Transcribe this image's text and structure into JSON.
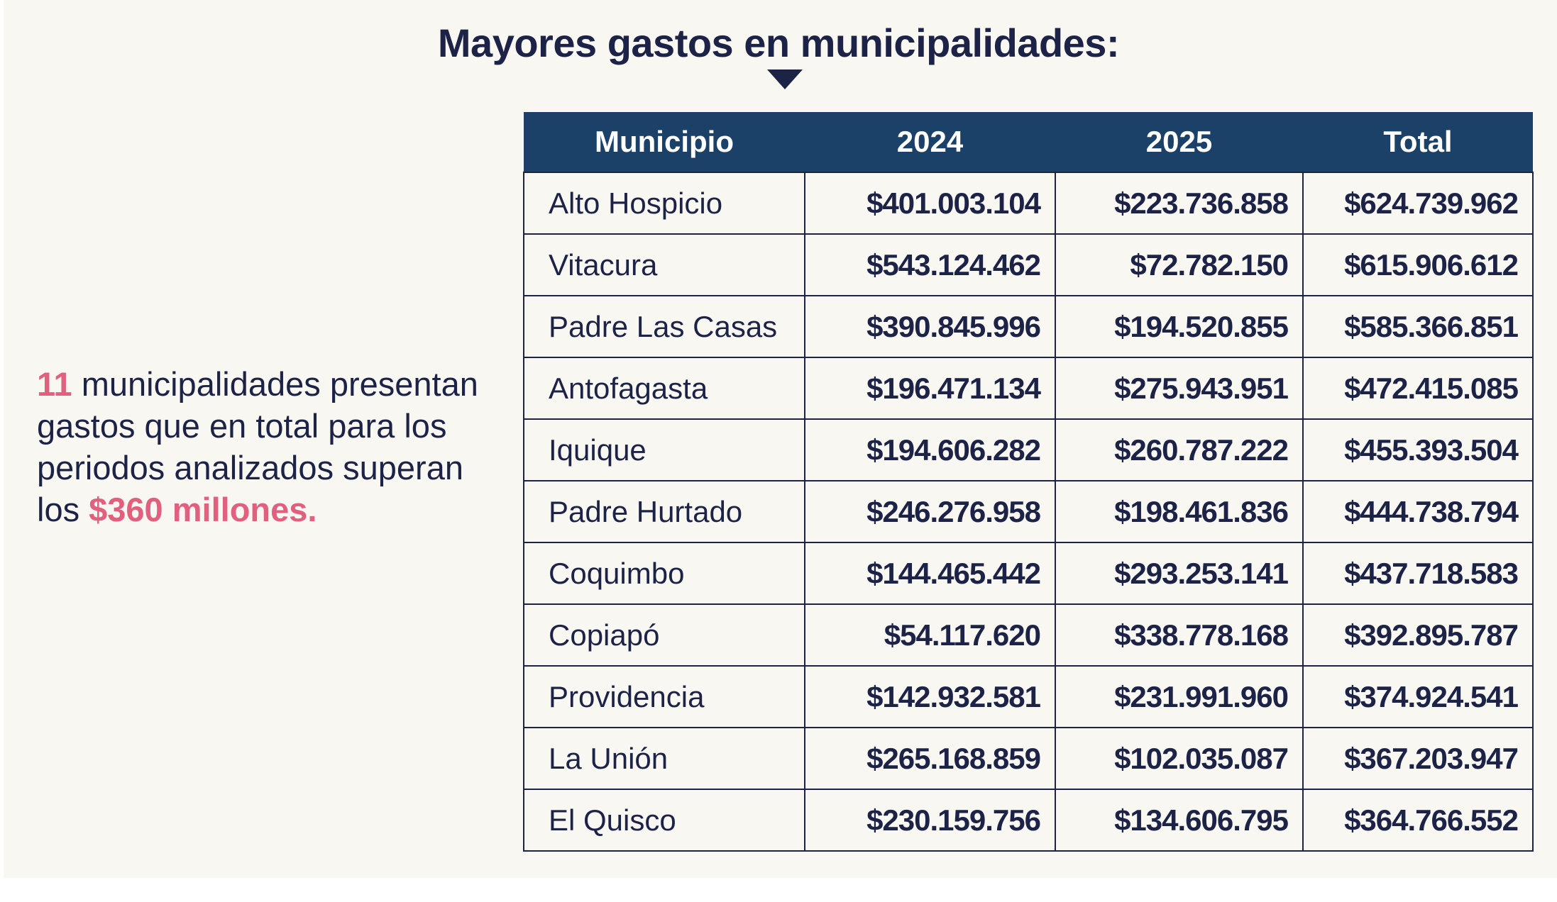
{
  "title": "Mayores gastos en municipalidades:",
  "side_note": {
    "count": "11",
    "text": " municipalidades presentan gastos que en total para los periodos analizados superan los ",
    "highlight": "$360 millones."
  },
  "colors": {
    "header": "#1b4169",
    "text": "#1d2347",
    "accent": "#e0607e",
    "background": "#f8f7f2"
  },
  "table": {
    "headers": [
      "Municipio",
      "2024",
      "2025",
      "Total"
    ],
    "rows": [
      [
        "Alto Hospicio",
        "$401.003.104",
        "$223.736.858",
        "$624.739.962"
      ],
      [
        "Vitacura",
        "$543.124.462",
        "$72.782.150",
        "$615.906.612"
      ],
      [
        "Padre Las Casas",
        "$390.845.996",
        "$194.520.855",
        "$585.366.851"
      ],
      [
        "Antofagasta",
        "$196.471.134",
        "$275.943.951",
        "$472.415.085"
      ],
      [
        "Iquique",
        "$194.606.282",
        "$260.787.222",
        "$455.393.504"
      ],
      [
        "Padre Hurtado",
        "$246.276.958",
        "$198.461.836",
        "$444.738.794"
      ],
      [
        "Coquimbo",
        "$144.465.442",
        "$293.253.141",
        "$437.718.583"
      ],
      [
        "Copiapó",
        "$54.117.620",
        "$338.778.168",
        "$392.895.787"
      ],
      [
        "Providencia",
        "$142.932.581",
        "$231.991.960",
        "$374.924.541"
      ],
      [
        "La Unión",
        "$265.168.859",
        "$102.035.087",
        "$367.203.947"
      ],
      [
        "El Quisco",
        "$230.159.756",
        "$134.606.795",
        "$364.766.552"
      ]
    ]
  }
}
